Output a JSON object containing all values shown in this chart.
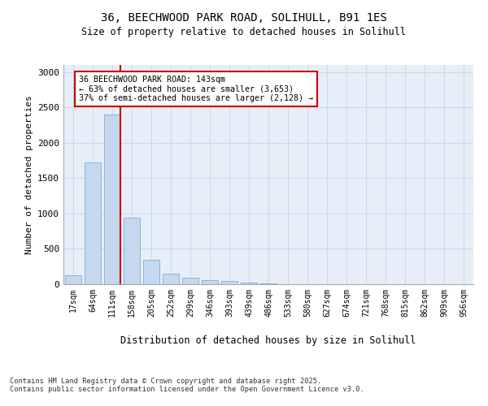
{
  "title1": "36, BEECHWOOD PARK ROAD, SOLIHULL, B91 1ES",
  "title2": "Size of property relative to detached houses in Solihull",
  "xlabel": "Distribution of detached houses by size in Solihull",
  "ylabel": "Number of detached properties",
  "categories": [
    "17sqm",
    "64sqm",
    "111sqm",
    "158sqm",
    "205sqm",
    "252sqm",
    "299sqm",
    "346sqm",
    "393sqm",
    "439sqm",
    "486sqm",
    "533sqm",
    "580sqm",
    "627sqm",
    "674sqm",
    "721sqm",
    "768sqm",
    "815sqm",
    "862sqm",
    "909sqm",
    "956sqm"
  ],
  "values": [
    130,
    1720,
    2400,
    940,
    340,
    155,
    90,
    60,
    45,
    20,
    15,
    0,
    0,
    0,
    0,
    0,
    0,
    0,
    0,
    0,
    0
  ],
  "bar_color": "#c5d8ef",
  "bar_edge_color": "#7aaed4",
  "vline_color": "#cc0000",
  "annotation_box_edge_color": "#cc0000",
  "annotation_text": "36 BEECHWOOD PARK ROAD: 143sqm\n← 63% of detached houses are smaller (3,653)\n37% of semi-detached houses are larger (2,128) →",
  "grid_color": "#d0d8e8",
  "background_color": "#e8eef8",
  "footer_text": "Contains HM Land Registry data © Crown copyright and database right 2025.\nContains public sector information licensed under the Open Government Licence v3.0.",
  "ylim": [
    0,
    3100
  ],
  "yticks": [
    0,
    500,
    1000,
    1500,
    2000,
    2500,
    3000
  ]
}
